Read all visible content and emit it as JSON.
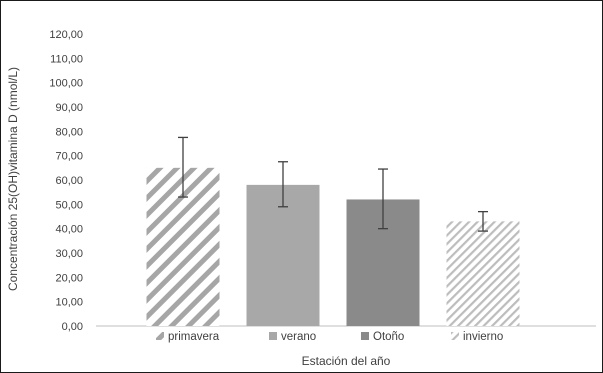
{
  "chart_data": {
    "type": "bar",
    "title": "",
    "xlabel": "Estación del año",
    "ylabel": "Concentración 25(OH)vitamina D (nmol/L)",
    "ylim": [
      0,
      120
    ],
    "ytick_step": 10,
    "ytick_labels": [
      "0,00",
      "10,00",
      "20,00",
      "30,00",
      "40,00",
      "50,00",
      "60,00",
      "70,00",
      "80,00",
      "90,00",
      "100,00",
      "110,00",
      "120,00"
    ],
    "grid": false,
    "legend_position": "bottom",
    "categories": [
      "primavera",
      "verano",
      "Otoño",
      "invierno"
    ],
    "values": [
      65,
      58,
      52,
      43
    ],
    "error_low": [
      53,
      49,
      40,
      39
    ],
    "error_high": [
      77.5,
      67.5,
      64.5,
      47
    ],
    "colors": {
      "primavera": "#a6a6a6",
      "verano": "#a8a8a8",
      "Otoño": "#8a8a8a",
      "invierno": "#bdbdbd",
      "axis": "#bfbfbf",
      "errorbar": "#404040"
    },
    "fills": [
      "hatch-wide",
      "solid",
      "solid",
      "hatch-fine"
    ]
  }
}
